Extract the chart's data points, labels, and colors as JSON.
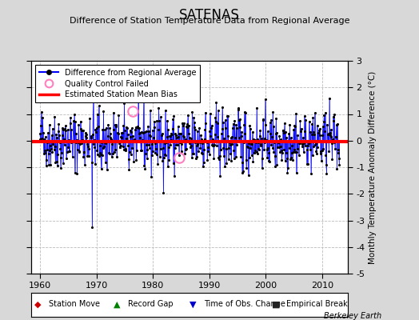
{
  "title": "SATENAS",
  "subtitle": "Difference of Station Temperature Data from Regional Average",
  "ylabel_right": "Monthly Temperature Anomaly Difference (°C)",
  "watermark": "Berkeley Earth",
  "xlim": [
    1958.5,
    2014.5
  ],
  "ylim": [
    -5,
    3
  ],
  "yticks": [
    -5,
    -4,
    -3,
    -2,
    -1,
    0,
    1,
    2,
    3
  ],
  "xticks": [
    1960,
    1970,
    1980,
    1990,
    2000,
    2010
  ],
  "bias_value": -0.05,
  "line_color": "#0000FF",
  "dot_color": "#000000",
  "bias_color": "#FF0000",
  "bg_color": "#D8D8D8",
  "plot_bg_color": "#FFFFFF",
  "grid_color": "#BBBBBB",
  "qc_failed_color": "#FF80C0",
  "seed": 42,
  "n_points": 636,
  "start_year": 1960.0,
  "end_year": 2013.0,
  "big_outlier_year": 1969.25,
  "big_outlier_val": -3.25,
  "qc_failed_years": [
    1976.4,
    1984.6
  ],
  "qc_failed_vals": [
    1.1,
    -0.65
  ]
}
